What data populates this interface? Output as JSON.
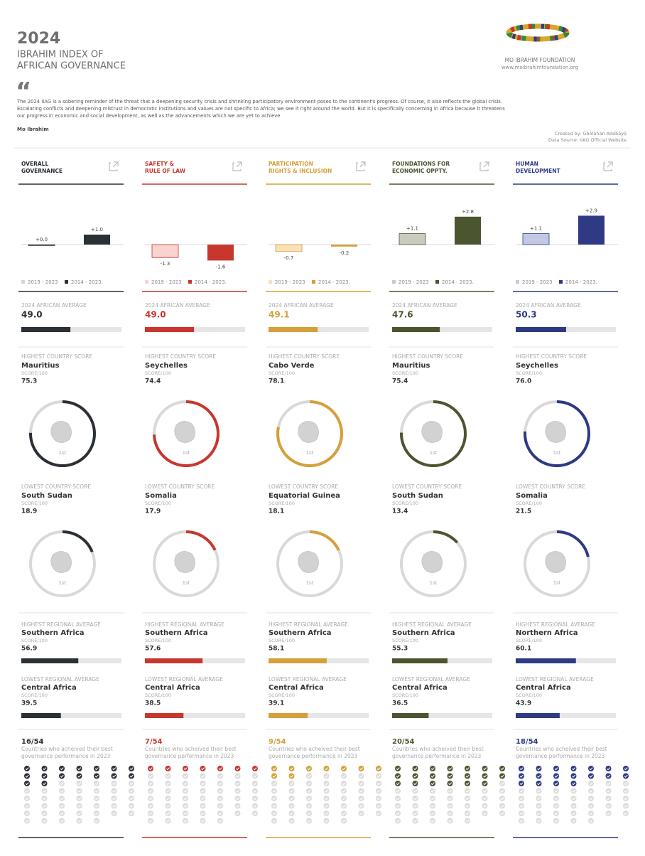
{
  "header": {
    "year": "2024",
    "title_line1": "IBRAHIM INDEX OF",
    "title_line2": "AFRICAN GOVERNANCE",
    "org": "MO IBRAHIM FOUNDATION",
    "url": "www.moibrahimfoundation.org"
  },
  "quote": {
    "mark": "“",
    "lines": [
      "The 2024 IIAG is a sobering reminder of the threat that a deepening security crisis and shrinking participatory environment poses to the continent's progress. Of course, it also reflects the global crisis.",
      "Escalating conflicts and deepening mistrust in democratic institutions and values are not specific to Africa; we see it right around the world. But it is specifically concerning in Africa because it threatens",
      "our progress in economic and social development, as well as the advancements which we are yet to achieve"
    ],
    "author": "Mo Ibrahim"
  },
  "credits": {
    "created_by": "Created by: Gbóláhàn Adébáyọ̀",
    "source": "Data Source: IIAG Official Website"
  },
  "labels": {
    "legend_recent": "2019 - 2023",
    "legend_long": "2014 - 2023.",
    "average": "2024 AFRICAN AVERAGE",
    "highest_country": "HIGHEST COUNTRY SCORE",
    "lowest_country": "LOWEST COUNTRY SCORE",
    "score_unit": "SCORE/100",
    "score_max": 100,
    "rank": "1st",
    "highest_region": "HIGHEST REGIONAL AVERAGE",
    "lowest_region": "LOWEST REGIONAL AVERAGE",
    "best_note_line1": "Countries who acheived their best",
    "best_note_line2": "governance performance in 2023"
  },
  "columns": [
    {
      "title_line1": "OVERALL",
      "title_line2": "GOVERNANCE",
      "color": "#2b2f36",
      "light_color": "#d4d6d9",
      "value_color": "#2b2f36",
      "trend_recent": {
        "value": 0.0,
        "label": "+0.0"
      },
      "trend_long": {
        "value": 1.0,
        "label": "+1.0"
      },
      "average": {
        "value": 49.0,
        "label": "49.0"
      },
      "highest_country": {
        "name": "Mauritius",
        "value": 75.3,
        "label": "75.3"
      },
      "lowest_country": {
        "name": "South Sudan",
        "value": 18.9,
        "label": "18.9"
      },
      "highest_region": {
        "name": "Southern Africa",
        "value": 56.9,
        "label": "56.9"
      },
      "lowest_region": {
        "name": "Central Africa",
        "value": 39.5,
        "label": "39.5"
      },
      "best": {
        "count": 16,
        "total": 54,
        "label": "16/54"
      }
    },
    {
      "title_line1": "SAFETY &",
      "title_line2": "RULE OF LAW",
      "color": "#c8372d",
      "light_color": "#f8d3cf",
      "value_color": "#c8372d",
      "trend_recent": {
        "value": -1.3,
        "label": "-1.3"
      },
      "trend_long": {
        "value": -1.6,
        "label": "-1.6"
      },
      "average": {
        "value": 49.0,
        "label": "49.0"
      },
      "highest_country": {
        "name": "Seychelles",
        "value": 74.4,
        "label": "74.4"
      },
      "lowest_country": {
        "name": "Somalia",
        "value": 17.9,
        "label": "17.9"
      },
      "highest_region": {
        "name": "Southern Africa",
        "value": 57.6,
        "label": "57.6"
      },
      "lowest_region": {
        "name": "Central Africa",
        "value": 38.5,
        "label": "38.5"
      },
      "best": {
        "count": 7,
        "total": 54,
        "label": "7/54"
      }
    },
    {
      "title_line1": "PARTICIPATION",
      "title_line2": "RIGHTS & INCLUSION",
      "color": "#d59f3a",
      "light_color": "#f7e1b9",
      "value_color": "#d59f3a",
      "trend_recent": {
        "value": -0.7,
        "label": "-0.7"
      },
      "trend_long": {
        "value": -0.2,
        "label": "-0.2"
      },
      "average": {
        "value": 49.1,
        "label": "49.1"
      },
      "highest_country": {
        "name": "Cabo Verde",
        "value": 78.1,
        "label": "78.1"
      },
      "lowest_country": {
        "name": "Equatorial Guinea",
        "value": 18.1,
        "label": "18.1"
      },
      "highest_region": {
        "name": "Southern Africa",
        "value": 58.1,
        "label": "58.1"
      },
      "lowest_region": {
        "name": "Central Africa",
        "value": 39.1,
        "label": "39.1"
      },
      "best": {
        "count": 9,
        "total": 54,
        "label": "9/54"
      }
    },
    {
      "title_line1": "FOUNDATIONS FOR",
      "title_line2": "ECONOMIC OPPTY.",
      "color": "#4b5530",
      "light_color": "#c9cbbf",
      "value_color": "#4b5530",
      "trend_recent": {
        "value": 1.1,
        "label": "+1.1"
      },
      "trend_long": {
        "value": 2.8,
        "label": "+2.8"
      },
      "average": {
        "value": 47.6,
        "label": "47.6"
      },
      "highest_country": {
        "name": "Mauritius",
        "value": 75.4,
        "label": "75.4"
      },
      "lowest_country": {
        "name": "South Sudan",
        "value": 13.4,
        "label": "13.4"
      },
      "highest_region": {
        "name": "Southern Africa",
        "value": 55.3,
        "label": "55.3"
      },
      "lowest_region": {
        "name": "Central Africa",
        "value": 36.5,
        "label": "36.5"
      },
      "best": {
        "count": 20,
        "total": 54,
        "label": "20/54"
      }
    },
    {
      "title_line1": "HUMAN",
      "title_line2": "DEVELOPMENT",
      "color": "#2e3a84",
      "light_color": "#c4c8e2",
      "value_color": "#2e3a84",
      "trend_recent": {
        "value": 1.1,
        "label": "+1.1"
      },
      "trend_long": {
        "value": 2.9,
        "label": "+2.9"
      },
      "average": {
        "value": 50.3,
        "label": "50.3"
      },
      "highest_country": {
        "name": "Seychelles",
        "value": 76.0,
        "label": "76.0"
      },
      "lowest_country": {
        "name": "Somalia",
        "value": 21.5,
        "label": "21.5"
      },
      "highest_region": {
        "name": "Northern Africa",
        "value": 60.1,
        "label": "60.1"
      },
      "lowest_region": {
        "name": "Central Africa",
        "value": 43.9,
        "label": "43.9"
      },
      "best": {
        "count": 18,
        "total": 54,
        "label": "18/54"
      }
    }
  ]
}
